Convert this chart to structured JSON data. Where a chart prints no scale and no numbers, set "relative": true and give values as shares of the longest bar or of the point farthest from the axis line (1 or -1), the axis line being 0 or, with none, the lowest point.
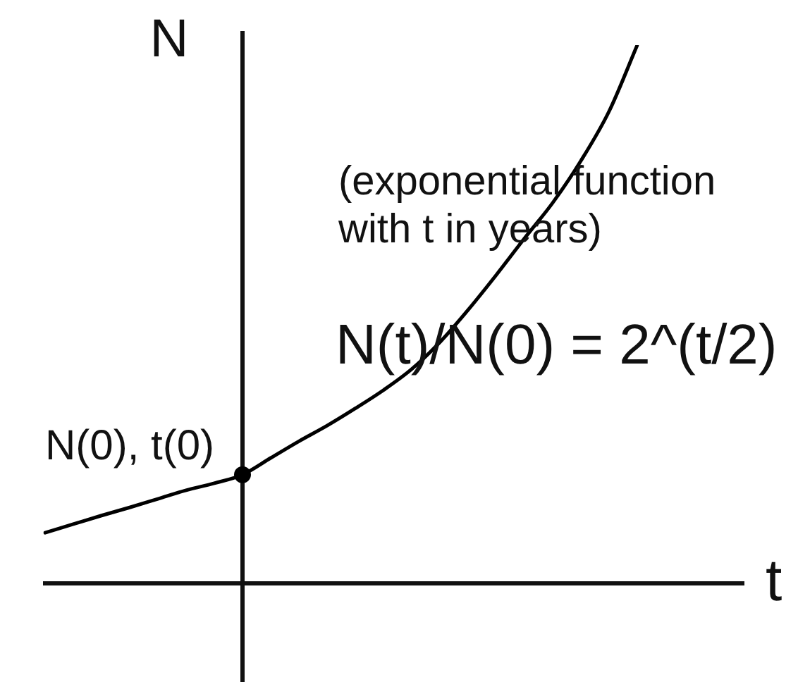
{
  "chart_data": {
    "type": "line",
    "xlabel": "t",
    "ylabel": "N",
    "categories": [
      null,
      null,
      null,
      null,
      null,
      null,
      null,
      null,
      null,
      null,
      null,
      null,
      null,
      null,
      null,
      null,
      null,
      null,
      null,
      null,
      null,
      null
    ],
    "series": [
      {
        "color": "#000000",
        "marker": "none",
        "values": [
          0.094,
          0.11,
          0.126,
          0.141,
          0.157,
          0.173,
          0.186,
          0.202,
          0.233,
          0.264,
          0.293,
          0.325,
          0.359,
          0.398,
          0.448,
          0.508,
          0.573,
          0.641,
          0.707,
          0.785,
          0.877,
          1
        ]
      },
      {
        "color": "#000000",
        "marker": "circle",
        "values": [
          null,
          null,
          null,
          null,
          null,
          null,
          null,
          0.202,
          null,
          null,
          null,
          null,
          null,
          null,
          null,
          null,
          null,
          null,
          null,
          null,
          null,
          null
        ]
      }
    ],
    "relative": true,
    "annotations": [
      "(exponential function\nwith t in years)",
      "N(t)/N(0) = 2^(t/2)",
      "N(0), t(0)"
    ]
  }
}
